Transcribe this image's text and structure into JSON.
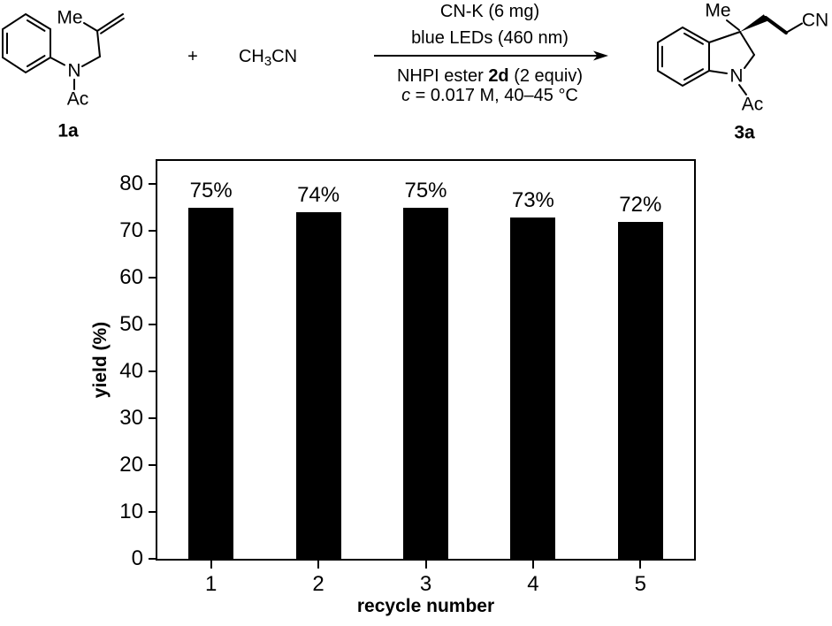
{
  "scheme": {
    "reactant_1a": {
      "substituent_methyl": "Me",
      "nitrogen": "N",
      "acetyl": "Ac",
      "compound_label": "1a"
    },
    "plus_sign": "+",
    "reagent_acetonitrile": {
      "part1": "CH",
      "part_sub": "3",
      "part2": "CN"
    },
    "arrow_conditions": {
      "above_line1": "CN-K (6 mg)",
      "above_line2": "blue LEDs (460 nm)",
      "below_line1_pre": "NHPI ester ",
      "below_line1_bold": "2d",
      "below_line1_post": " (2 equiv)",
      "below_line2_italic": "c",
      "below_line2_rest": " = 0.017 M, 40–45 °C"
    },
    "product_3a": {
      "substituent_methyl": "Me",
      "nitrile": "CN",
      "nitrogen": "N",
      "acetyl": "Ac",
      "compound_label": "3a"
    }
  },
  "chart_data": {
    "type": "bar",
    "title": "",
    "categories": [
      "1",
      "2",
      "3",
      "4",
      "5"
    ],
    "values": [
      75,
      74,
      75,
      73,
      72
    ],
    "bar_labels": [
      "75%",
      "74%",
      "75%",
      "73%",
      "72%"
    ],
    "xlabel": "recycle number",
    "ylabel": "yield (%)",
    "ylim": [
      0,
      85
    ],
    "yticks": [
      0,
      10,
      20,
      30,
      40,
      50,
      60,
      70,
      80
    ],
    "bar_color": "#000000",
    "grid": false,
    "legend": false
  }
}
